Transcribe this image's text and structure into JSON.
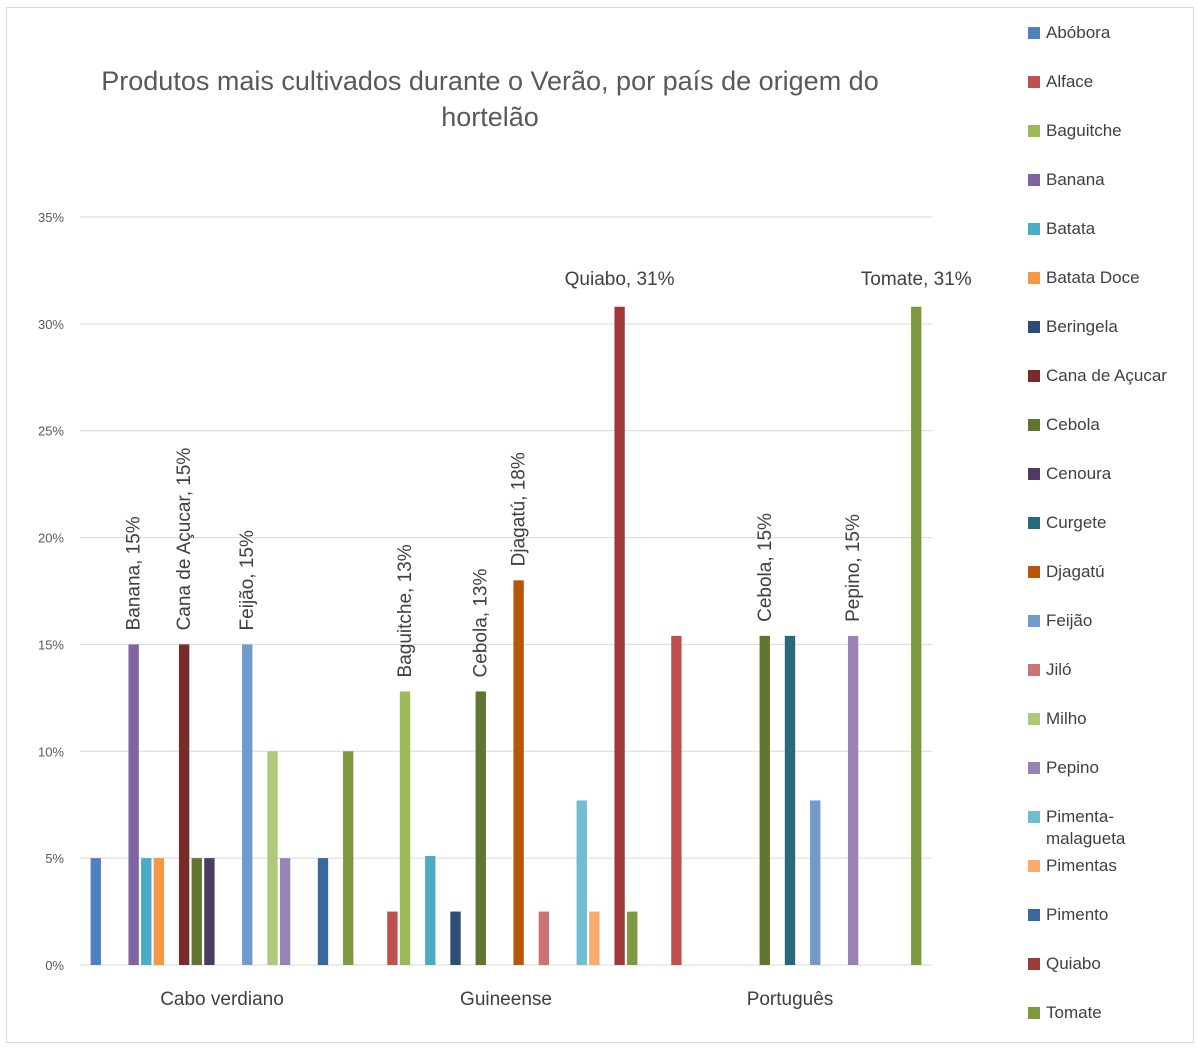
{
  "chart_data": {
    "type": "bar",
    "title": "Produtos mais cultivados durante o Verão, por país de origem do hortelão",
    "title_lines": [
      "Produtos mais cultivados durante o Verão, por país de origem do",
      "hortelão"
    ],
    "xlabel": "",
    "ylabel": "",
    "ylim": [
      0,
      0.35
    ],
    "yticks": [
      "0%",
      "5%",
      "10%",
      "15%",
      "20%",
      "25%",
      "30%",
      "35%"
    ],
    "grid": true,
    "legend_position": "right",
    "categories": [
      "Cabo verdiano",
      "Guineense",
      "Português"
    ],
    "series": [
      {
        "name": "Abóbora",
        "color": "#4f81bd",
        "values": [
          0.05,
          0,
          0
        ]
      },
      {
        "name": "Alface",
        "color": "#c0504d",
        "values": [
          0,
          0.025,
          0.154
        ]
      },
      {
        "name": "Baguitche",
        "color": "#9bbb59",
        "values": [
          0,
          0.128,
          0
        ]
      },
      {
        "name": "Banana",
        "color": "#8064a2",
        "values": [
          0.15,
          0,
          0
        ]
      },
      {
        "name": "Batata",
        "color": "#4bacc6",
        "values": [
          0.05,
          0.051,
          0
        ]
      },
      {
        "name": "Batata Doce",
        "color": "#f79646",
        "values": [
          0.05,
          0,
          0
        ]
      },
      {
        "name": "Beringela",
        "color": "#2c4d75",
        "values": [
          0,
          0.025,
          0
        ]
      },
      {
        "name": "Cana de Açucar",
        "color": "#772c2a",
        "values": [
          0.15,
          0,
          0
        ]
      },
      {
        "name": "Cebola",
        "color": "#5f7530",
        "values": [
          0.05,
          0.128,
          0.154
        ]
      },
      {
        "name": "Cenoura",
        "color": "#4d3b62",
        "values": [
          0.05,
          0,
          0
        ]
      },
      {
        "name": "Curgete",
        "color": "#276a7c",
        "values": [
          0,
          0,
          0.154
        ]
      },
      {
        "name": "Djagatú",
        "color": "#b65708",
        "values": [
          0,
          0.18,
          0
        ]
      },
      {
        "name": "Feijão",
        "color": "#729aca",
        "values": [
          0.15,
          0,
          0.077
        ]
      },
      {
        "name": "Jiló",
        "color": "#cd7371",
        "values": [
          0,
          0.025,
          0
        ]
      },
      {
        "name": "Milho",
        "color": "#afc97a",
        "values": [
          0.1,
          0,
          0
        ]
      },
      {
        "name": "Pepino",
        "color": "#9983b5",
        "values": [
          0.05,
          0,
          0.154
        ]
      },
      {
        "name": "Pimenta-malagueta",
        "color": "#6fbdd1",
        "values": [
          0,
          0.077,
          0
        ]
      },
      {
        "name": "Pimentas",
        "color": "#f9ab6b",
        "values": [
          0,
          0.025,
          0
        ]
      },
      {
        "name": "Pimento",
        "color": "#3a679c",
        "values": [
          0.05,
          0,
          0
        ]
      },
      {
        "name": "Quiabo",
        "color": "#9e3b39",
        "values": [
          0,
          0.308,
          0
        ]
      },
      {
        "name": "Tomate",
        "color": "#7e9a40",
        "values": [
          0.1,
          0.025,
          0.308
        ]
      }
    ],
    "data_labels": [
      {
        "text": "Banana, 15%",
        "series": 3,
        "category": 0,
        "rotated": true
      },
      {
        "text": "Cana de Açucar, 15%",
        "series": 7,
        "category": 0,
        "rotated": true
      },
      {
        "text": "Feijão, 15%",
        "series": 12,
        "category": 0,
        "rotated": true
      },
      {
        "text": "Baguitche, 13%",
        "series": 2,
        "category": 1,
        "rotated": true
      },
      {
        "text": "Cebola, 13%",
        "series": 8,
        "category": 1,
        "rotated": true
      },
      {
        "text": "Djagatú, 18%",
        "series": 11,
        "category": 1,
        "rotated": true
      },
      {
        "text": "Quiabo, 31%",
        "series": 19,
        "category": 1,
        "rotated": false
      },
      {
        "text": "Cebola, 15%",
        "series": 8,
        "category": 2,
        "rotated": true
      },
      {
        "text": "Pepino, 15%",
        "series": 15,
        "category": 2,
        "rotated": true
      },
      {
        "text": "Tomate, 31%",
        "series": 20,
        "category": 2,
        "rotated": false
      }
    ],
    "legend_labels": [
      "Abóbora",
      "Alface",
      "Baguitche",
      "Banana",
      "Batata",
      "Batata Doce",
      "Beringela",
      "Cana de Açucar",
      "Cebola",
      "Cenoura",
      "Curgete",
      "Djagatú",
      "Feijão",
      "Jiló",
      "Milho",
      "Pepino",
      "Pimenta-",
      "Pimentas",
      "Pimento",
      "Quiabo",
      "Tomate"
    ],
    "legend_label_continuation": "malagueta"
  }
}
